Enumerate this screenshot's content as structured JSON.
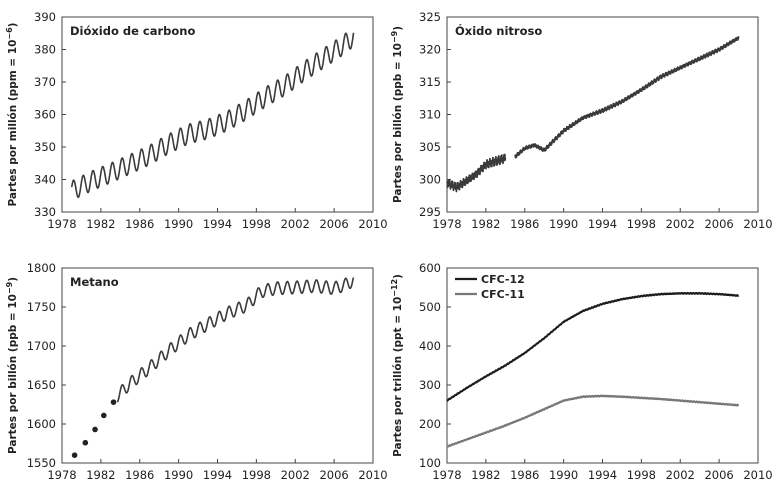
{
  "chart_data": [
    {
      "type": "line",
      "title": "Dióxido de carbono",
      "ylabel": "Partes por millón (ppm = 10",
      "ylabel_sup": "−6",
      "ylabel_end": ")",
      "xlim": [
        1978,
        2010
      ],
      "ylim": [
        330,
        390
      ],
      "xticks": [
        "1978",
        "1982",
        "1986",
        "1990",
        "1994",
        "1998",
        "2002",
        "2006",
        "2010"
      ],
      "yticks": [
        "330",
        "340",
        "350",
        "360",
        "370",
        "380",
        "390"
      ],
      "grid": false,
      "series": [
        {
          "x": [
            1979.0,
            1981.0,
            1983.0,
            1985.0,
            1987.0,
            1989.0,
            1991.0,
            1993.0,
            1995.0,
            1997.0,
            1999.0,
            2001.0,
            2003.0,
            2005.0,
            2007.0,
            2008.0
          ],
          "values": [
            336.5,
            339.5,
            342.0,
            344.7,
            347.5,
            351.0,
            354.0,
            355.5,
            358.0,
            361.5,
            365.5,
            369.0,
            373.5,
            377.5,
            381.5,
            384.0
          ],
          "seasonal_amplitude": 3.0,
          "color": "#3a3a3a"
        }
      ]
    },
    {
      "type": "line",
      "title": "Óxido nitroso",
      "ylabel": "Partes por billón (ppb = 10",
      "ylabel_sup": "−9",
      "ylabel_end": ")",
      "xlim": [
        1978,
        2010
      ],
      "ylim": [
        295,
        325
      ],
      "xticks": [
        "1978",
        "1982",
        "1986",
        "1990",
        "1994",
        "1998",
        "2002",
        "2006",
        "2010"
      ],
      "yticks": [
        "295",
        "300",
        "305",
        "310",
        "315",
        "320",
        "325"
      ],
      "grid": false,
      "series": [
        {
          "x": [
            1978.0,
            1979.0,
            1980.0,
            1981.0,
            1982.0,
            1983.0,
            1984.0
          ],
          "values": [
            299.5,
            298.8,
            299.8,
            300.8,
            302.3,
            302.8,
            303.3
          ],
          "noise": 0.7,
          "color": "#3a3a3a"
        },
        {
          "x": [
            1985.0,
            1986.0,
            1987.0,
            1988.0,
            1990.0,
            1992.0,
            1994.0,
            1996.0,
            1998.0,
            2000.0,
            2002.0,
            2004.0,
            2006.0,
            2008.0
          ],
          "values": [
            303.5,
            304.8,
            305.3,
            304.5,
            307.5,
            309.5,
            310.6,
            312.0,
            313.8,
            315.8,
            317.2,
            318.6,
            320.0,
            321.8
          ],
          "noise": 0.3,
          "color": "#3a3a3a"
        }
      ]
    },
    {
      "type": "line",
      "title": "Metano",
      "ylabel": "Partes por billón (ppb = 10",
      "ylabel_sup": "−9",
      "ylabel_end": ")",
      "xlim": [
        1978,
        2010
      ],
      "ylim": [
        1550,
        1800
      ],
      "xticks": [
        "1978",
        "1982",
        "1986",
        "1990",
        "1994",
        "1998",
        "2002",
        "2006",
        "2010"
      ],
      "yticks": [
        "1550",
        "1600",
        "1650",
        "1700",
        "1750",
        "1800"
      ],
      "grid": false,
      "points": {
        "x": [
          1979.3,
          1980.4,
          1981.4,
          1982.3,
          1983.3
        ],
        "values": [
          1560,
          1576,
          1593,
          1611,
          1628
        ]
      },
      "series": [
        {
          "x": [
            1983.7,
            1985.0,
            1987.0,
            1989.0,
            1991.0,
            1993.0,
            1995.0,
            1997.0,
            1998.5,
            2000.0,
            2002.0,
            2004.0,
            2006.0,
            2007.5,
            2008.0
          ],
          "values": [
            1636,
            1652,
            1672,
            1694,
            1714,
            1728,
            1742,
            1752,
            1770,
            1774,
            1775,
            1777,
            1774,
            1780,
            1786
          ],
          "seasonal_amplitude": 8.0,
          "color": "#3a3a3a"
        }
      ]
    },
    {
      "type": "line",
      "title": "",
      "ylabel": "Partes por trillón (ppt = 10",
      "ylabel_sup": "−12",
      "ylabel_end": ")",
      "xlim": [
        1978,
        2010
      ],
      "ylim": [
        100,
        600
      ],
      "xticks": [
        "1978",
        "1982",
        "1986",
        "1990",
        "1994",
        "1998",
        "2002",
        "2006",
        "2010"
      ],
      "yticks": [
        "100",
        "200",
        "300",
        "400",
        "500",
        "600"
      ],
      "grid": false,
      "legend_position": "top-left",
      "series": [
        {
          "name": "CFC-12",
          "x": [
            1978.0,
            1980.0,
            1982.0,
            1984.0,
            1986.0,
            1988.0,
            1990.0,
            1992.0,
            1994.0,
            1996.0,
            1998.0,
            2000.0,
            2002.0,
            2004.0,
            2006.0,
            2008.0
          ],
          "values": [
            260,
            292,
            322,
            350,
            382,
            420,
            462,
            490,
            508,
            520,
            528,
            533,
            535,
            535,
            533,
            529
          ],
          "noise": 1.5,
          "color": "#1c1c1c"
        },
        {
          "name": "CFC-11",
          "x": [
            1978.0,
            1980.0,
            1982.0,
            1984.0,
            1986.0,
            1988.0,
            1990.0,
            1992.0,
            1994.0,
            1996.0,
            1998.0,
            2000.0,
            2002.0,
            2004.0,
            2006.0,
            2008.0
          ],
          "values": [
            142,
            160,
            178,
            196,
            216,
            238,
            260,
            270,
            272,
            270,
            267,
            264,
            260,
            256,
            252,
            248
          ],
          "noise": 1.5,
          "color": "#777777"
        }
      ]
    }
  ]
}
